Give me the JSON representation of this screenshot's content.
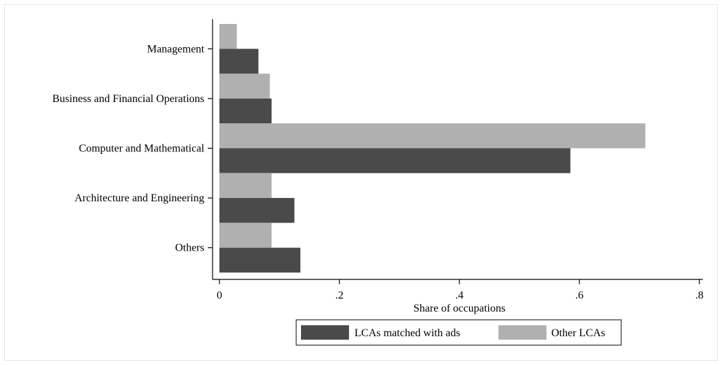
{
  "chart_data": {
    "type": "bar",
    "orientation": "horizontal",
    "categories": [
      "Management",
      "Business and Financial Operations",
      "Computer and Mathematical",
      "Architecture and Engineering",
      "Others"
    ],
    "series": [
      {
        "name": "LCAs matched with ads",
        "color": "#4a4a4a",
        "values": [
          0.065,
          0.087,
          0.585,
          0.125,
          0.135
        ]
      },
      {
        "name": "Other LCAs",
        "color": "#b0b0b0",
        "values": [
          0.029,
          0.084,
          0.71,
          0.087,
          0.087
        ]
      }
    ],
    "xlabel": "Share of occupations",
    "ylabel": "",
    "xlim": [
      0,
      0.8
    ],
    "xticks": [
      0,
      0.2,
      0.4,
      0.6,
      0.8
    ],
    "xtick_labels": [
      "0",
      ".2",
      ".4",
      ".6",
      ".8"
    ],
    "grid": false,
    "legend_position": "bottom"
  }
}
